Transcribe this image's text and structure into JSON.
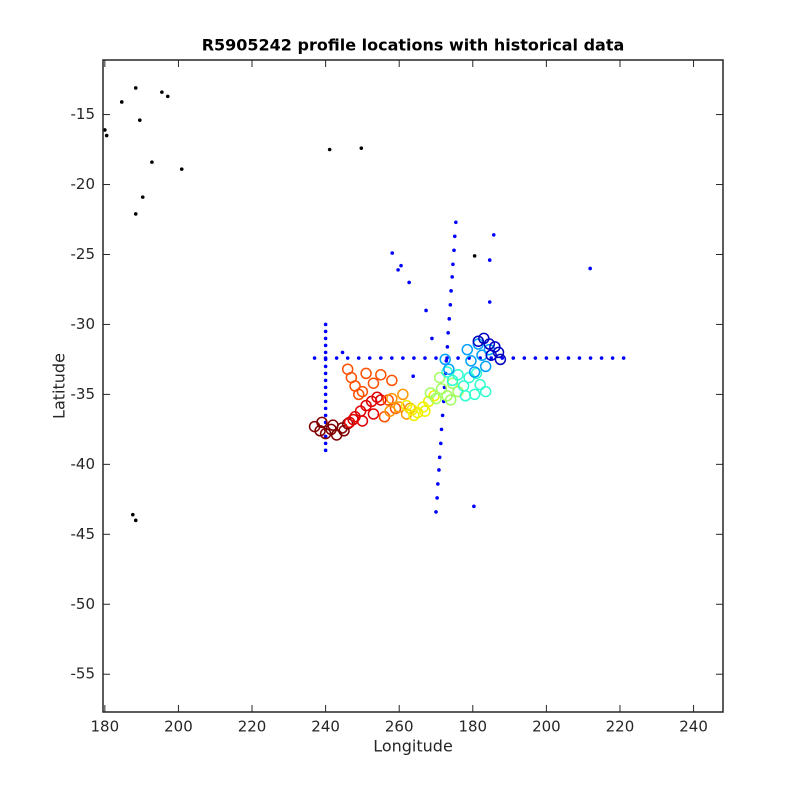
{
  "chart_data": {
    "type": "scatter",
    "title": "R5905242 profile locations with historical data",
    "x_label": "Longitude",
    "y_label": "Latitude",
    "xlim": [
      179.5,
      348
    ],
    "ylim": [
      -57.7,
      -11.1
    ],
    "xticks": [
      180,
      200,
      220,
      240,
      260,
      {
        "value": 280,
        "label": "180"
      },
      {
        "value": 300,
        "label": "200"
      },
      {
        "value": 320,
        "label": "220"
      },
      {
        "value": 340,
        "label": "240"
      }
    ],
    "yticks": [
      -55,
      -50,
      -45,
      -40,
      -35,
      -30,
      -25,
      -20,
      -15
    ],
    "series": [
      {
        "color": "#000000",
        "marker": "dot",
        "x": [
          180,
          180.5,
          184.6,
          188.4,
          189.5,
          192.8,
          190.3,
          188.4,
          195.5,
          197.1,
          200.9,
          241.1,
          249.7,
          280.5,
          187.6,
          188.4
        ],
        "y": [
          -16.1,
          -16.5,
          -14.1,
          -13.1,
          -15.4,
          -18.4,
          -20.9,
          -22.1,
          -13.4,
          -13.7,
          -18.9,
          -17.5,
          -17.4,
          -25.1,
          -43.6,
          -44.0
        ]
      },
      {
        "color": "#0000ff",
        "marker": "dot",
        "x": [
          237,
          240,
          243,
          246,
          249,
          252,
          255,
          258,
          261,
          264,
          267,
          270,
          273,
          276,
          279,
          282,
          285,
          288,
          291,
          294,
          297,
          300,
          303,
          306,
          309,
          312,
          315,
          318,
          321,
          240,
          240,
          240,
          240,
          240,
          240,
          240,
          240,
          240,
          240,
          240,
          240,
          240,
          240,
          240,
          240,
          240,
          240,
          240,
          275.4,
          275.1,
          274.9,
          274.6,
          274.4,
          274.1,
          273.9,
          273.6,
          273.3,
          273.1,
          272.8,
          272.6,
          272.3,
          272.1,
          271.8,
          271.5,
          271.3,
          271.0,
          270.8,
          270.5,
          270.3,
          270.0,
          258.1,
          259.7,
          260.5,
          262.7,
          267.3,
          268.9,
          263.8,
          244.6,
          285.7,
          284.6,
          284.6,
          311.9,
          280.3
        ],
        "y": [
          -32.4,
          -32.4,
          -32.4,
          -32.4,
          -32.4,
          -32.4,
          -32.4,
          -32.4,
          -32.4,
          -32.4,
          -32.4,
          -32.4,
          -32.4,
          -32.4,
          -32.4,
          -32.4,
          -32.4,
          -32.4,
          -32.4,
          -32.4,
          -32.4,
          -32.4,
          -32.4,
          -32.4,
          -32.4,
          -32.4,
          -32.4,
          -32.4,
          -32.4,
          -30,
          -30.5,
          -31,
          -31.5,
          -32,
          -32.5,
          -33,
          -33.5,
          -34,
          -34.5,
          -35,
          -35.5,
          -36,
          -36.5,
          -37,
          -37.5,
          -38,
          -38.5,
          -39,
          -22.7,
          -23.7,
          -24.7,
          -25.7,
          -26.6,
          -27.6,
          -28.6,
          -29.6,
          -30.6,
          -31.6,
          -32.6,
          -33.5,
          -34.5,
          -35.5,
          -36.5,
          -37.5,
          -38.5,
          -39.5,
          -40.4,
          -41.4,
          -42.4,
          -43.4,
          -24.9,
          -26.1,
          -25.8,
          -27.0,
          -29.0,
          -31.0,
          -33.7,
          -32.0,
          -23.6,
          -25.4,
          -28.4,
          -26.0,
          -43.0
        ]
      },
      {
        "color": "#800000",
        "marker": "circle",
        "x": [
          237,
          238.5,
          240,
          241.5,
          243,
          244.5,
          246,
          239,
          242,
          245
        ],
        "y": [
          -37.3,
          -37.6,
          -37.8,
          -37.5,
          -37.9,
          -37.4,
          -37.1,
          -37.0,
          -37.2,
          -37.6
        ]
      },
      {
        "color": "#e00000",
        "marker": "circle",
        "x": [
          246.5,
          248,
          249.5,
          251,
          252.5,
          254,
          255,
          250,
          253,
          247.5
        ],
        "y": [
          -37.0,
          -36.6,
          -36.2,
          -35.8,
          -35.5,
          -35.2,
          -35.4,
          -36.9,
          -36.4,
          -36.8
        ]
      },
      {
        "color": "#ff5000",
        "marker": "circle",
        "x": [
          246,
          247,
          248,
          249,
          251,
          253,
          255,
          257,
          259,
          256,
          258,
          250
        ],
        "y": [
          -33.2,
          -33.8,
          -34.4,
          -35.0,
          -33.5,
          -34.2,
          -33.6,
          -35.4,
          -36.0,
          -36.6,
          -34.0,
          -34.8
        ]
      },
      {
        "color": "#ff9800",
        "marker": "circle",
        "x": [
          258,
          260,
          262,
          257.5,
          261,
          263
        ],
        "y": [
          -35.3,
          -35.9,
          -36.4,
          -36.2,
          -35.0,
          -36.0
        ]
      },
      {
        "color": "#f0f000",
        "marker": "circle",
        "x": [
          262,
          263.5,
          265,
          266.5,
          268,
          269.5,
          264,
          267
        ],
        "y": [
          -35.8,
          -36.1,
          -36.3,
          -35.9,
          -35.5,
          -35.1,
          -36.5,
          -36.2
        ]
      },
      {
        "color": "#a0ff60",
        "marker": "circle",
        "x": [
          268.5,
          270,
          271.5,
          273,
          274.5,
          276,
          271,
          274
        ],
        "y": [
          -34.9,
          -35.3,
          -34.6,
          -35.1,
          -34.2,
          -34.8,
          -33.8,
          -35.4
        ]
      },
      {
        "color": "#30ffd0",
        "marker": "circle",
        "x": [
          273,
          274.5,
          276,
          277.5,
          279,
          280.5,
          282,
          283.5,
          278,
          281
        ],
        "y": [
          -33.4,
          -34.0,
          -33.6,
          -34.4,
          -33.8,
          -35.0,
          -34.3,
          -34.8,
          -35.1,
          -33.5
        ]
      },
      {
        "color": "#00a0ff",
        "marker": "circle",
        "x": [
          272.5,
          273.5,
          278.5,
          279.5,
          280.5,
          281.5,
          282.5,
          283.5,
          284.5
        ],
        "y": [
          -32.5,
          -33.2,
          -31.8,
          -32.6,
          -33.4,
          -31.4,
          -32.2,
          -33.0,
          -31.8
        ]
      },
      {
        "color": "#0000c0",
        "marker": "circle",
        "x": [
          281.5,
          283,
          284.5,
          286,
          287,
          287.5,
          285
        ],
        "y": [
          -31.2,
          -31.0,
          -31.4,
          -31.6,
          -32.0,
          -32.5,
          -32.2
        ]
      }
    ]
  }
}
